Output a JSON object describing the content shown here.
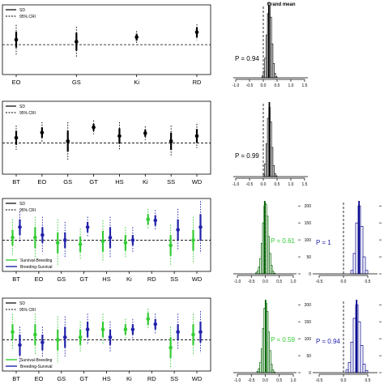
{
  "figure_title": "Grand mean",
  "legend": {
    "sd": "SD",
    "cri": "95% CRI",
    "group_a": "Survival-Breeding",
    "group_b": "Breeding-Survival"
  },
  "colors": {
    "black": "#000000",
    "green": "#33cc33",
    "blue": "#2222aa",
    "hist_green": "#006400",
    "hist_blue": "#00008b"
  },
  "chart_data": [
    {
      "type": "scatter",
      "panel": "row1-effects",
      "categories": [
        "EO",
        "GS",
        "Ki",
        "RD"
      ],
      "series": [
        {
          "values": [
            1.0,
            0.6,
            1.5,
            2.5
          ],
          "sd": [
            1.6,
            1.8,
            0.7,
            1.0
          ],
          "cri": [
            3.0,
            3.0,
            1.2,
            1.6
          ]
        }
      ],
      "ylim": [
        -6,
        8
      ],
      "reference_line": 0
    },
    {
      "type": "bar",
      "panel": "row1-posterior",
      "title": "Grand mean",
      "x_ticks": [
        "-1.0",
        "-0.5",
        "0.0",
        "0.5",
        "1.0",
        "1.5"
      ],
      "y_ticks": [
        "0",
        "50",
        "100",
        "150",
        "200"
      ],
      "xlim": [
        -1.0,
        1.5
      ],
      "ylim": [
        0,
        200
      ],
      "bin_starts": [
        -0.05,
        0.0,
        0.05,
        0.1,
        0.15,
        0.2,
        0.25,
        0.3,
        0.35,
        0.4,
        0.45
      ],
      "counts": [
        5,
        18,
        55,
        120,
        180,
        210,
        170,
        95,
        40,
        12,
        3
      ],
      "mean": 0.2,
      "annotation": "P = 0.94"
    },
    {
      "type": "scatter",
      "panel": "row2-effects",
      "categories": [
        "BT",
        "EO",
        "GS",
        "GT",
        "HS",
        "Ki",
        "SS",
        "WD"
      ],
      "series": [
        {
          "values": [
            1.5,
            3.0,
            0.5,
            4.5,
            2.0,
            2.8,
            0.5,
            2.0
          ],
          "sd": [
            2.0,
            1.5,
            3.0,
            1.0,
            2.2,
            1.0,
            2.5,
            2.0
          ],
          "cri": [
            3.5,
            3.0,
            5.5,
            2.0,
            4.0,
            2.0,
            4.5,
            3.5
          ]
        }
      ],
      "ylim": [
        -9,
        12
      ],
      "reference_line": 0
    },
    {
      "type": "bar",
      "panel": "row2-posterior",
      "x_ticks": [
        "-1.0",
        "-0.5",
        "0.0",
        "0.5",
        "1.0",
        "1.5"
      ],
      "y_ticks": [
        "0",
        "50",
        "100",
        "150",
        "200"
      ],
      "xlim": [
        -1.0,
        1.5
      ],
      "ylim": [
        0,
        200
      ],
      "bin_starts": [
        0.0,
        0.05,
        0.1,
        0.15,
        0.2,
        0.25,
        0.3,
        0.35,
        0.4,
        0.45
      ],
      "counts": [
        6,
        35,
        90,
        160,
        190,
        150,
        80,
        30,
        8,
        2
      ],
      "mean": 0.22,
      "annotation": "P = 0.99"
    },
    {
      "type": "scatter",
      "panel": "row3-effects",
      "categories": [
        "BT",
        "EO",
        "GS",
        "GT",
        "HS",
        "Ki",
        "RD",
        "SS",
        "WD"
      ],
      "series": [
        {
          "name": "Survival-Breeding",
          "values": [
            0.5,
            0.5,
            -0.5,
            -0.8,
            -0.2,
            -0.5,
            4.0,
            -1.0,
            0.0
          ],
          "sd": [
            1.5,
            2.0,
            2.0,
            1.5,
            2.0,
            1.5,
            1.0,
            2.0,
            2.0
          ],
          "cri": [
            3.5,
            4.0,
            4.5,
            3.0,
            4.0,
            3.0,
            2.0,
            4.0,
            4.5
          ]
        },
        {
          "name": "Breeding-Survival",
          "values": [
            2.5,
            1.0,
            0.0,
            2.5,
            0.5,
            0.0,
            3.8,
            2.0,
            2.5
          ],
          "sd": [
            1.5,
            1.5,
            1.5,
            1.0,
            2.0,
            1.0,
            1.0,
            2.0,
            2.5
          ],
          "cri": [
            3.0,
            3.5,
            3.5,
            2.0,
            4.0,
            2.5,
            2.0,
            4.0,
            5.0
          ]
        }
      ],
      "ylim": [
        -6,
        8
      ],
      "reference_line": 0
    },
    {
      "type": "bar",
      "panel": "row3-posterior-green",
      "x_ticks": [
        "-1.0",
        "-0.5",
        "0.0",
        "0.5",
        "1.0"
      ],
      "y_ticks": [
        "0",
        "50",
        "100",
        "150",
        "200"
      ],
      "xlim": [
        -1.0,
        1.0
      ],
      "ylim": [
        0,
        210
      ],
      "bin_starts": [
        -0.35,
        -0.3,
        -0.25,
        -0.2,
        -0.15,
        -0.1,
        -0.05,
        0.0,
        0.05,
        0.1,
        0.15,
        0.2,
        0.25,
        0.3
      ],
      "counts": [
        3,
        8,
        20,
        45,
        90,
        150,
        200,
        205,
        170,
        110,
        60,
        25,
        8,
        2
      ],
      "mean": -0.02,
      "annotation": "P = 0.61",
      "annotation_color": "green"
    },
    {
      "type": "bar",
      "panel": "row3-posterior-blue",
      "x_ticks": [
        "-0.5",
        "0.0",
        "0.5"
      ],
      "y_ticks": [
        "0",
        "50",
        "100",
        "150",
        "200"
      ],
      "xlim": [
        -0.55,
        0.6
      ],
      "ylim": [
        0,
        210
      ],
      "bin_starts": [
        0.15,
        0.2,
        0.25,
        0.3,
        0.35,
        0.4,
        0.45
      ],
      "counts": [
        10,
        60,
        150,
        200,
        140,
        50,
        10
      ],
      "mean": 0.32,
      "annotation": "P = 1",
      "annotation_color": "blue"
    },
    {
      "type": "scatter",
      "panel": "row4-effects",
      "categories": [
        "BT",
        "EO",
        "GS",
        "GT",
        "HS",
        "Ki",
        "RD",
        "SS",
        "WD"
      ],
      "series": [
        {
          "name": "Survival-Breeding",
          "values": [
            1.5,
            1.0,
            0.0,
            0.5,
            2.0,
            2.0,
            4.0,
            -1.5,
            1.0
          ],
          "sd": [
            1.5,
            2.0,
            2.0,
            1.5,
            1.5,
            1.0,
            1.2,
            2.0,
            2.0
          ],
          "cri": [
            3.5,
            4.0,
            4.5,
            3.0,
            3.0,
            2.0,
            2.0,
            4.0,
            4.0
          ]
        },
        {
          "name": "Breeding-Survival",
          "values": [
            -1.0,
            -0.5,
            0.5,
            2.0,
            0.5,
            2.0,
            3.0,
            1.5,
            1.5
          ],
          "sd": [
            2.0,
            1.5,
            2.0,
            1.5,
            1.5,
            1.0,
            1.0,
            1.5,
            2.0
          ],
          "cri": [
            3.5,
            3.0,
            4.0,
            3.0,
            3.0,
            2.0,
            2.0,
            3.5,
            4.0
          ]
        }
      ],
      "ylim": [
        -6,
        8
      ],
      "reference_line": 0
    },
    {
      "type": "bar",
      "panel": "row4-posterior-green",
      "x_ticks": [
        "-1.0",
        "-0.5",
        "0.0",
        "0.5",
        "1.0"
      ],
      "y_ticks": [
        "0",
        "50",
        "100",
        "150",
        "200"
      ],
      "xlim": [
        -1.0,
        1.0
      ],
      "ylim": [
        0,
        210
      ],
      "bin_starts": [
        -0.3,
        -0.25,
        -0.2,
        -0.15,
        -0.1,
        -0.05,
        0.0,
        0.05,
        0.1,
        0.15,
        0.2,
        0.25,
        0.3
      ],
      "counts": [
        4,
        12,
        30,
        70,
        130,
        190,
        205,
        180,
        120,
        65,
        25,
        8,
        2
      ],
      "mean": 0.01,
      "annotation": "P = 0.59",
      "annotation_color": "green"
    },
    {
      "type": "bar",
      "panel": "row4-posterior-blue",
      "x_ticks": [
        "-0.5",
        "0.0",
        "0.5"
      ],
      "y_ticks": [
        "0",
        "50",
        "100",
        "150",
        "200"
      ],
      "xlim": [
        -0.55,
        0.6
      ],
      "ylim": [
        0,
        210
      ],
      "bin_starts": [
        0.05,
        0.1,
        0.15,
        0.2,
        0.25,
        0.3,
        0.35,
        0.4,
        0.45
      ],
      "counts": [
        8,
        30,
        90,
        160,
        200,
        150,
        80,
        25,
        6
      ],
      "mean": 0.27,
      "annotation": "P = 0.94",
      "annotation_color": "blue"
    }
  ]
}
